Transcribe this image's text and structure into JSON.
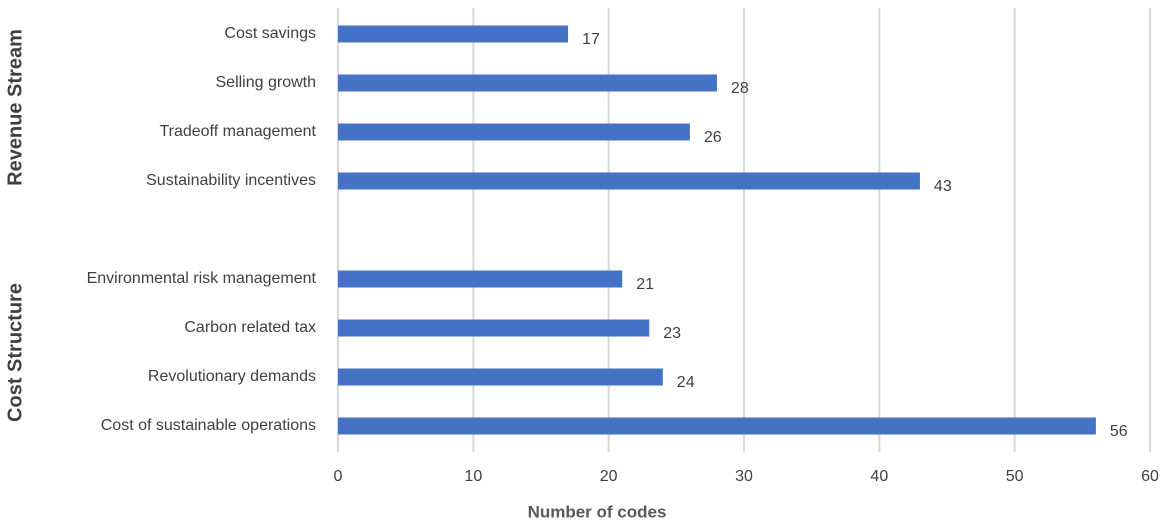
{
  "chart_data": {
    "type": "bar",
    "orientation": "horizontal",
    "color": "#4472c4",
    "x_label": "Number of codes",
    "groups": [
      {
        "name": "Revenue Stream",
        "categories": [
          "Cost savings",
          "Selling growth",
          "Tradeoff management",
          "Sustainability incentives"
        ],
        "values": [
          17,
          28,
          26,
          43
        ]
      },
      {
        "name": "Cost Structure",
        "categories": [
          "Environmental risk management",
          "Carbon related tax",
          "Revolutionary demands",
          "Cost of sustainable operations"
        ],
        "values": [
          21,
          23,
          24,
          56
        ]
      }
    ],
    "xlim": [
      0,
      60
    ],
    "xticks": [
      0,
      10,
      20,
      30,
      40,
      50,
      60
    ],
    "grid": true,
    "data_labels": true
  }
}
